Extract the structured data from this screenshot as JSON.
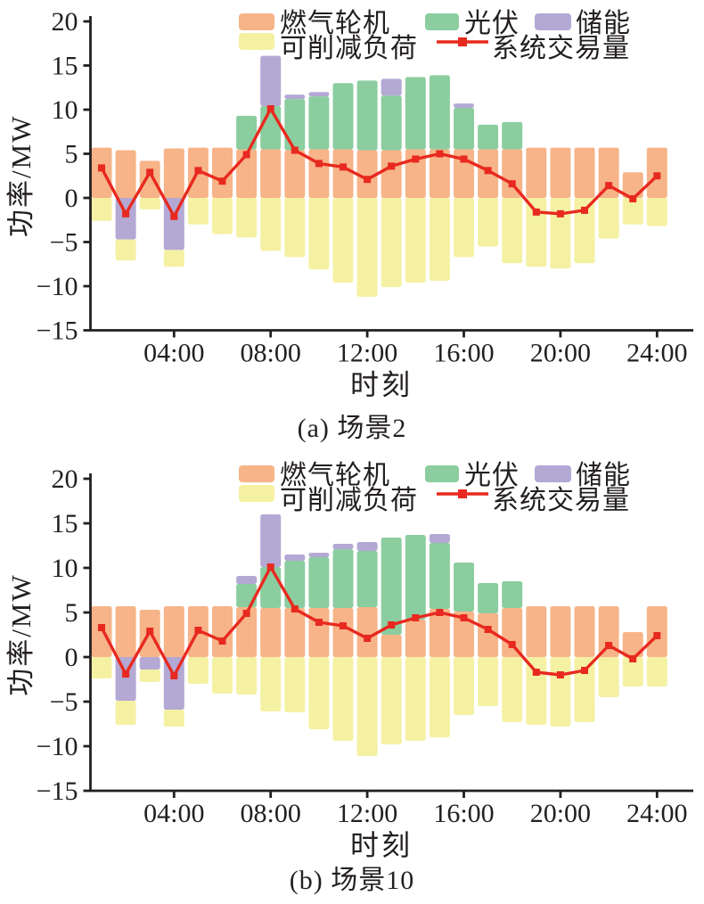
{
  "colors": {
    "gas": "#F6B488",
    "pv": "#8CCDA0",
    "storage": "#B4A8D4",
    "load": "#F5F1A3",
    "trade": "#E8291F",
    "axis": "#231F20",
    "text": "#231F20",
    "background": "#FFFFFF"
  },
  "legend": {
    "gas": "燃气轮机",
    "pv": "光伏",
    "storage": "储能",
    "load": "可削减负荷",
    "trade": "系统交易量"
  },
  "chart_data": [
    {
      "type": "stacked-bar+line",
      "title": "(a) 场景2",
      "xlabel": "时刻",
      "ylabel": "功率/MW",
      "ylim": [
        -15,
        20
      ],
      "yticks": [
        20,
        15,
        10,
        5,
        0,
        -5,
        -10,
        -15
      ],
      "xtick_hours": [
        4,
        8,
        12,
        16,
        20,
        24
      ],
      "xtick_labels": [
        "04:00",
        "08:00",
        "12:00",
        "16:00",
        "20:00",
        "24:00"
      ],
      "legend_entries": [
        "燃气轮机",
        "光伏",
        "储能",
        "可削减负荷",
        "系统交易量"
      ],
      "grid": false,
      "hours": [
        1,
        2,
        3,
        4,
        5,
        6,
        7,
        8,
        9,
        10,
        11,
        12,
        13,
        14,
        15,
        16,
        17,
        18,
        19,
        20,
        21,
        22,
        23,
        24
      ],
      "series": {
        "gas_top": [
          5.7,
          5.4,
          4.2,
          5.6,
          5.7,
          5.7,
          5.5,
          5.5,
          5.4,
          5.5,
          5.5,
          5.4,
          5.4,
          5.5,
          5.5,
          5.5,
          5.5,
          5.5,
          5.7,
          5.7,
          5.7,
          5.7,
          2.9,
          5.7
        ],
        "pv_top": [
          5.7,
          5.4,
          4.2,
          5.6,
          5.7,
          5.7,
          9.3,
          10.4,
          11.2,
          11.5,
          13.0,
          13.3,
          11.6,
          13.7,
          13.9,
          10.2,
          8.3,
          8.6,
          5.7,
          5.7,
          5.7,
          5.7,
          2.9,
          5.7
        ],
        "storage_top": [
          5.7,
          5.4,
          4.2,
          5.6,
          5.7,
          5.7,
          9.3,
          16.1,
          11.7,
          12.0,
          13.0,
          13.3,
          13.5,
          13.7,
          13.9,
          10.7,
          8.3,
          8.6,
          5.7,
          5.7,
          5.7,
          5.7,
          2.9,
          5.7
        ],
        "storage_neg": [
          0,
          -4.7,
          0,
          -5.9,
          0,
          0,
          0,
          0,
          0,
          0,
          0,
          0,
          0,
          0,
          0,
          0,
          0,
          0,
          0,
          0,
          0,
          0,
          0,
          0
        ],
        "load_bottom": [
          -2.6,
          -7.1,
          -1.3,
          -7.8,
          -3.0,
          -4.1,
          -4.5,
          -6.0,
          -6.7,
          -8.1,
          -9.6,
          -11.2,
          -10.1,
          -9.6,
          -9.4,
          -6.7,
          -5.5,
          -7.4,
          -7.8,
          -8.0,
          -7.4,
          -4.6,
          -3.0,
          -3.2
        ],
        "trade": [
          3.4,
          -1.8,
          2.9,
          -2.1,
          3.1,
          1.9,
          4.9,
          10.1,
          5.4,
          3.9,
          3.5,
          2.1,
          3.6,
          4.4,
          5.0,
          4.4,
          3.1,
          1.6,
          -1.6,
          -1.8,
          -1.4,
          1.4,
          -0.1,
          2.5
        ]
      }
    },
    {
      "type": "stacked-bar+line",
      "title": "(b) 场景10",
      "xlabel": "时刻",
      "ylabel": "功率/MW",
      "ylim": [
        -15,
        20
      ],
      "yticks": [
        20,
        15,
        10,
        5,
        0,
        -5,
        -10,
        -15
      ],
      "xtick_hours": [
        4,
        8,
        12,
        16,
        20,
        24
      ],
      "xtick_labels": [
        "04:00",
        "08:00",
        "12:00",
        "16:00",
        "20:00",
        "24:00"
      ],
      "legend_entries": [
        "燃气轮机",
        "光伏",
        "储能",
        "可削减负荷",
        "系统交易量"
      ],
      "grid": false,
      "hours": [
        1,
        2,
        3,
        4,
        5,
        6,
        7,
        8,
        9,
        10,
        11,
        12,
        13,
        14,
        15,
        16,
        17,
        18,
        19,
        20,
        21,
        22,
        23,
        24
      ],
      "series": {
        "gas_top": [
          5.7,
          5.7,
          5.3,
          5.7,
          5.7,
          5.7,
          5.6,
          5.5,
          5.5,
          5.5,
          5.5,
          5.6,
          2.5,
          4.2,
          5.4,
          5.1,
          4.9,
          5.5,
          5.7,
          5.7,
          5.7,
          5.7,
          2.8,
          5.7
        ],
        "pv_top": [
          5.7,
          5.7,
          5.3,
          5.7,
          5.7,
          5.7,
          8.2,
          10.1,
          10.8,
          11.2,
          12.1,
          11.9,
          13.4,
          13.7,
          12.8,
          10.6,
          8.3,
          8.5,
          5.7,
          5.7,
          5.7,
          5.7,
          2.8,
          5.7
        ],
        "storage_top": [
          5.7,
          5.7,
          5.3,
          5.7,
          5.7,
          5.7,
          9.1,
          16.0,
          11.5,
          11.7,
          12.7,
          12.9,
          13.4,
          13.7,
          13.8,
          10.6,
          8.3,
          8.5,
          5.7,
          5.7,
          5.7,
          5.7,
          2.8,
          5.7
        ],
        "storage_neg": [
          0,
          -4.9,
          -1.4,
          -5.9,
          0,
          0,
          0,
          0,
          0,
          0,
          0,
          0,
          0,
          0,
          0,
          0,
          0,
          0,
          0,
          0,
          0,
          0,
          0,
          0
        ],
        "load_bottom": [
          -2.4,
          -7.6,
          -2.8,
          -7.8,
          -3.0,
          -4.1,
          -4.2,
          -6.1,
          -6.2,
          -8.1,
          -9.4,
          -11.1,
          -9.8,
          -9.4,
          -9.0,
          -6.5,
          -5.5,
          -7.3,
          -7.6,
          -7.8,
          -7.3,
          -4.5,
          -3.3,
          -3.3
        ],
        "trade": [
          3.3,
          -1.9,
          2.9,
          -2.1,
          3.0,
          1.8,
          4.9,
          10.1,
          5.4,
          3.9,
          3.5,
          2.1,
          3.6,
          4.4,
          5.0,
          4.4,
          3.1,
          1.4,
          -1.7,
          -2.0,
          -1.5,
          1.3,
          -0.2,
          2.4
        ]
      }
    }
  ]
}
